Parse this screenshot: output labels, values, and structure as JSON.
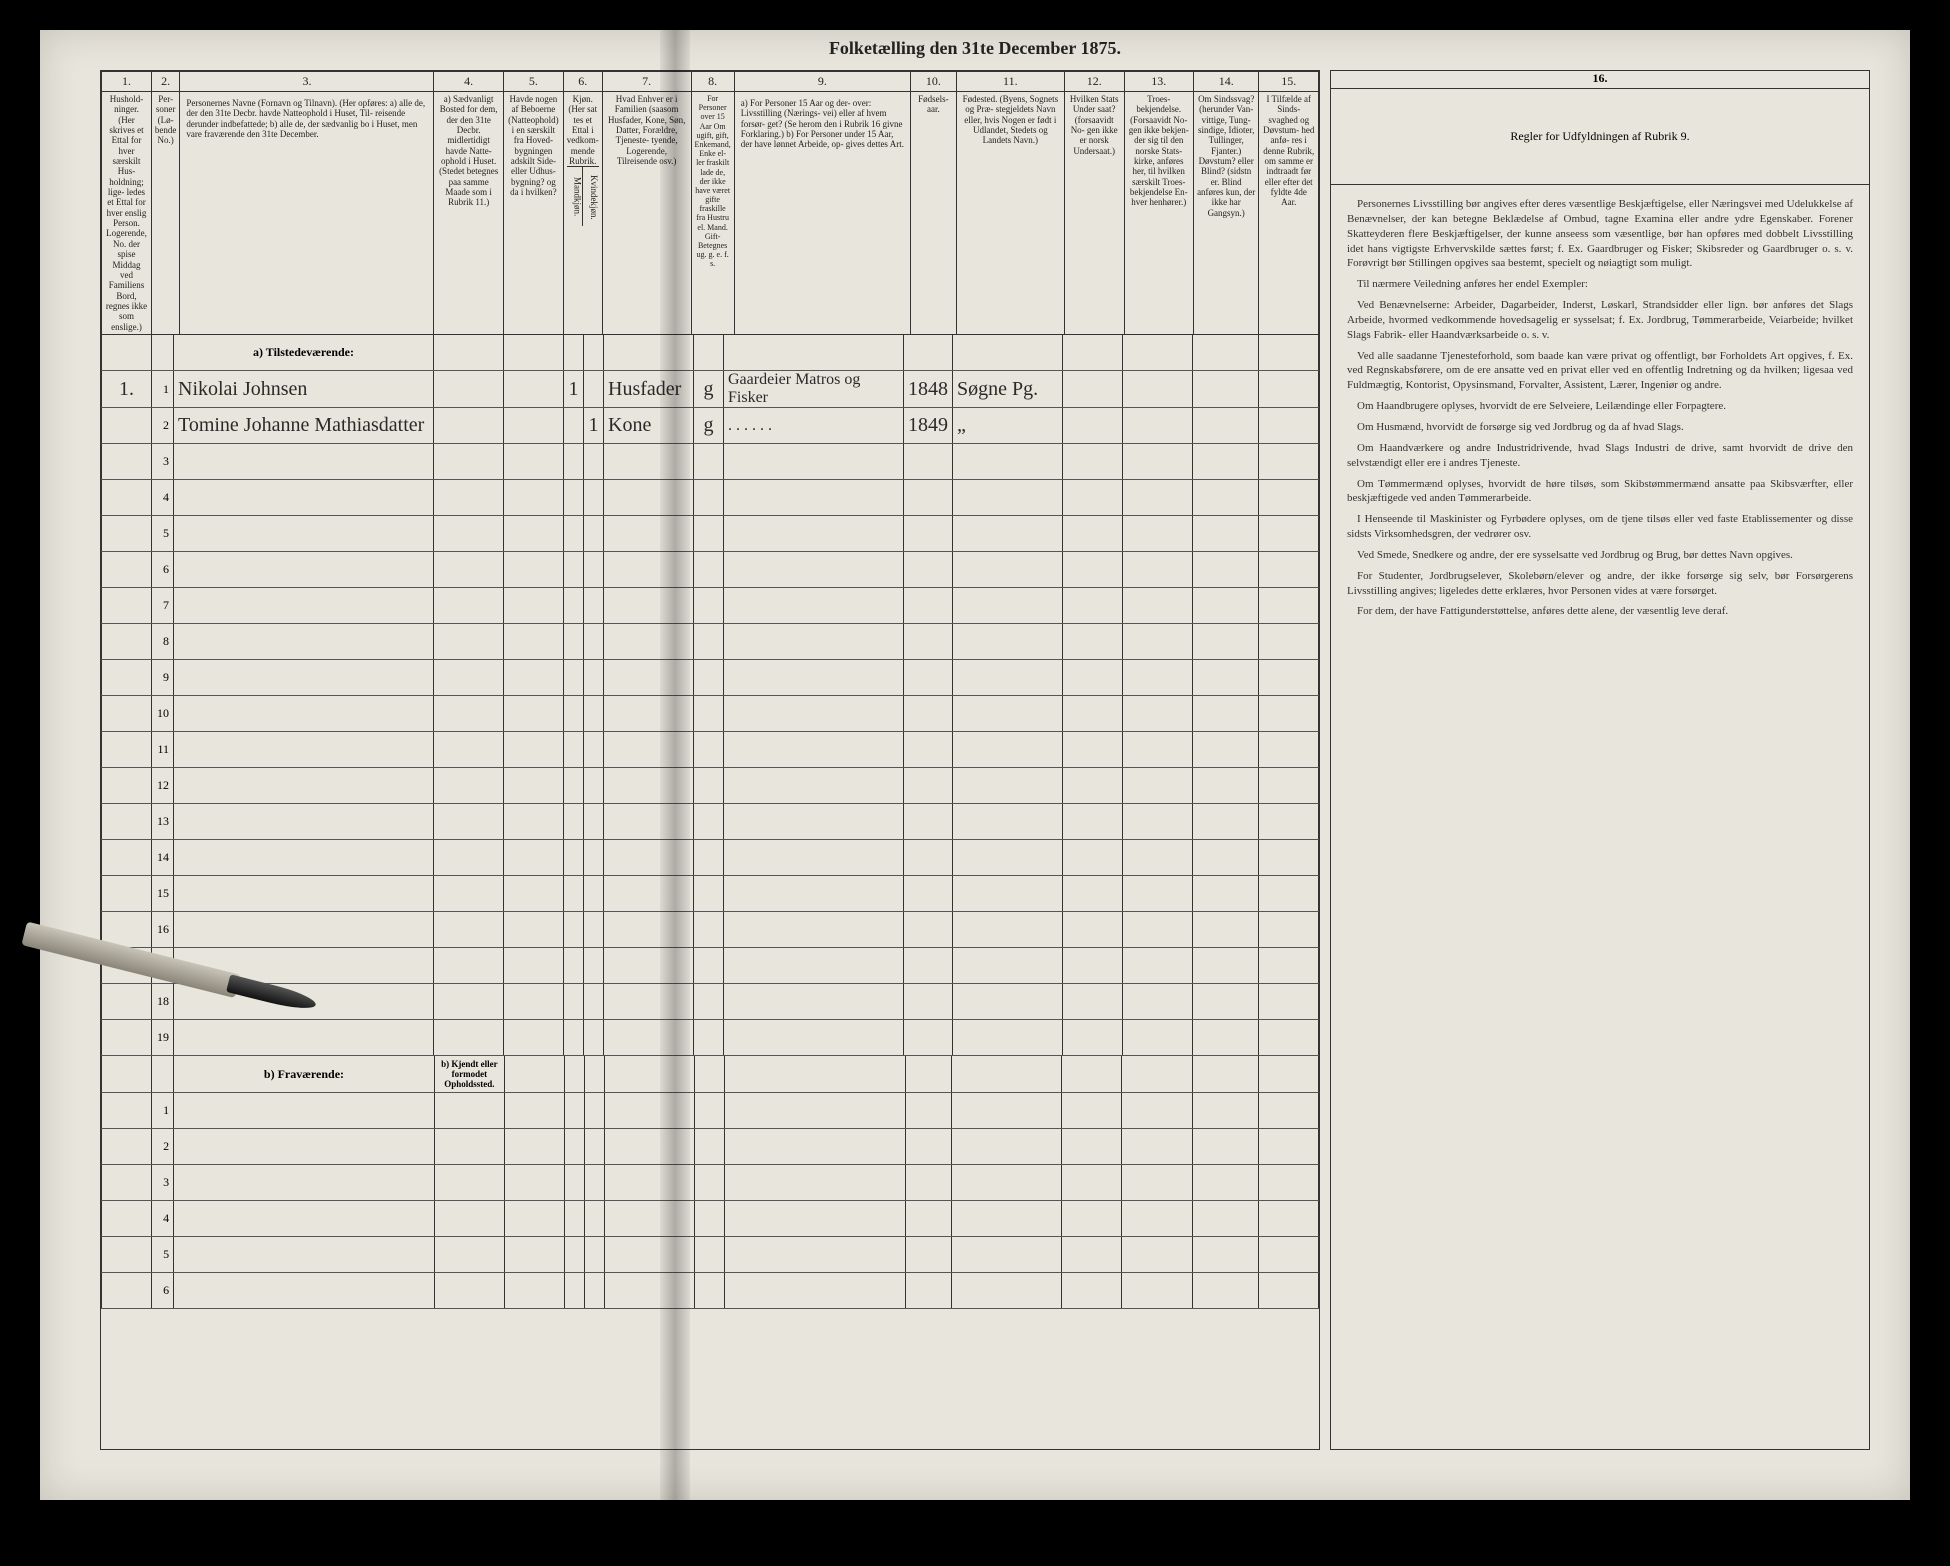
{
  "title_top": "Folketælling den 31te December 1875.",
  "columns": {
    "1": {
      "num": "1.",
      "desc": "Hushold-\nninger.\n(Her skrives et\nEttal for hver\nsærskilt Hus-\nholdning; lige-\nledes et Ettal for\nhver enslig\nPerson.\nLogerende, No.\nder spise Middag\nved Familiens\nBord, regnes ikke\nsom enslige.)"
    },
    "2": {
      "num": "2.",
      "desc": "Per-\nsoner\n(Lø-\nbende\nNo.)"
    },
    "3": {
      "num": "3.",
      "desc": "Personernes Navne (Fornavn og Tilnavn).\n(Her opføres:\na) alle de, der den 31te Decbr. havde Natteophold i Huset, Til-\nreisende derunder indbefattede;\nb) alle de, der sædvanlig bo i Huset, men vare fraværende\nden 31te December."
    },
    "4": {
      "num": "4.",
      "desc": "a) Sædvanligt\nBosted for\ndem, der den\n31te Decbr.\nmidlertidigt\nhavde Natte-\nophold i Huset.\n(Stedet betegnes\npaa samme Maade\nsom i Rubrik 11.)"
    },
    "5": {
      "num": "5.",
      "desc": "Havde nogen\naf Beboerne\n(Natteophold)\ni en særskilt\nfra Hoved-\nbygningen\nadskilt Side-\neller Udhus-\nbygning?\nog da i\nhvilken?"
    },
    "6": {
      "num": "6.",
      "desc": "Kjøn.\n(Her sat\ntes et\nEttal i\nvedkom-\nmende\nRubrik.",
      "sub1": "Mandkjøn.",
      "sub2": "Kvindekjøn."
    },
    "7": {
      "num": "7.",
      "desc": "Hvad Enhver er\ni Familien\n(saasom Husfader,\nKone, Søn, Datter,\nForældre, Tjeneste-\ntyende, Logerende,\nTilreisende osv.)"
    },
    "8": {
      "num": "8.",
      "desc": "For Personer\nover 15 Aar\nOm ugift, gift,\nEnkemand,\nEnke el-\nler fraskilt\nlade de, der\nikke have\nværet gifte\nfraskille fra\nHustru el.\nMand. Gift-\nBetegnes\nug. g. e.\nf. s.",
      "sub1": "",
      "sub2": ""
    },
    "9": {
      "num": "9.",
      "desc": "a) For Personer 15 Aar og der-\nover: Livsstilling (Nærings-\nvei) eller af hvem forsør-\nget? (Se herom den i Rubrik 16\ngivne Forklaring.)\nb) For Personer under 15 Aar,\nder have lønnet Arbeide, op-\ngives dettes Art."
    },
    "10": {
      "num": "10.",
      "desc": "Fødsels-\naar."
    },
    "11": {
      "num": "11.",
      "desc": "Fødested.\n(Byens, Sognets og Præ-\nstegjeldets Navn eller, hvis\nNogen er født i Udlandet,\nStedets og Landets\nNavn.)"
    },
    "12": {
      "num": "12.",
      "desc": "Hvilken\nStats Under\nsaat?\n(forsaavidt No-\ngen ikke er\nnorsk\nUndersaat.)"
    },
    "13": {
      "num": "13.",
      "desc": "Troes-\nbekjendelse.\n(Forsaavidt No-\ngen ikke bekjen-\nder sig til den\nnorske Stats-\nkirke, anføres\nher, til hvilken\nsærskilt Troes-\nbekjendelse En-\nhver henhører.)"
    },
    "14": {
      "num": "14.",
      "desc": "Om\nSindssvag?\n(herunder Van-\nvittige, Tung-\nsindige, Idioter,\nTullinger,\nFjanter.)\nDøvstum?\neller Blind?\n(sidstn er. Blind\nanføres kun, der\nikke har\nGangsyn.)"
    },
    "15": {
      "num": "15.",
      "desc": "I Tilfælde\naf Sinds-\nsvaghed og\nDøvstum-\nhed anfø-\nres i denne\nRubrik,\nom\nsamme er\nindtraadt\nfør eller\nefter det\nfyldte\n4de Aar."
    },
    "16": {
      "num": "16.",
      "desc": "Regler for Udfyldningen\naf\nRubrik 9."
    }
  },
  "section_a": "a) Tilstedeværende:",
  "section_b": "b) Fraværende:",
  "section_b_col4": "b) Kjendt eller\nformodet\nOpholdssted.",
  "rows_a": [
    {
      "n": "1",
      "hh": "1.",
      "col2": "1",
      "name": "Nikolai Johnsen",
      "c4": "",
      "c5": "",
      "c6a": "1",
      "c6b": "",
      "c7": "Husfader",
      "c8": "g",
      "c9": "Gaardeier\nMatros og Fisker",
      "c10": "1848",
      "c11": "Søgne Pg.",
      "c12": "",
      "c13": "",
      "c14": "",
      "c15": ""
    },
    {
      "n": "2",
      "hh": "",
      "col2": "2",
      "name": "Tomine Johanne Mathiasdatter",
      "c4": "",
      "c5": "",
      "c6a": "",
      "c6b": "1",
      "c7": "Kone",
      "c8": "g",
      "c9": ". . . . . .",
      "c10": "1849",
      "c11": "„",
      "c12": "",
      "c13": "",
      "c14": "",
      "c15": ""
    },
    {
      "n": "3"
    },
    {
      "n": "4"
    },
    {
      "n": "5"
    },
    {
      "n": "6"
    },
    {
      "n": "7"
    },
    {
      "n": "8"
    },
    {
      "n": "9"
    },
    {
      "n": "10"
    },
    {
      "n": "11"
    },
    {
      "n": "12"
    },
    {
      "n": "13"
    },
    {
      "n": "14"
    },
    {
      "n": "15"
    },
    {
      "n": "16"
    },
    {
      "n": "17"
    },
    {
      "n": "18"
    },
    {
      "n": "19"
    }
  ],
  "rows_b": [
    {
      "n": "1"
    },
    {
      "n": "2"
    },
    {
      "n": "3"
    },
    {
      "n": "4"
    },
    {
      "n": "5"
    },
    {
      "n": "6"
    }
  ],
  "rules_title": "Regler for Udfyldningen\naf\nRubrik 9.",
  "rules_paragraphs": [
    "Personernes Livsstilling bør angives efter deres væsentlige Beskjæftigelse, eller Næringsvei med Udelukkelse af Benævnelser, der kan betegne Beklædelse af Ombud, tagne Examina eller andre ydre Egenskaber. Forener Skatteyderen flere Beskjæftigelser, der kunne anseess som væsentlige, bør han opføres med dobbelt Livsstilling idet hans vigtigste Erhvervskilde sættes først; f. Ex. Gaardbruger og Fisker; Skibsreder og Gaardbruger o. s. v. Forøvrigt bør Stillingen opgives saa bestemt, specielt og nøiagtigt som muligt.",
    "Til nærmere Veiledning anføres her endel Exempler:",
    "Ved Benævnelserne: Arbeider, Dagarbeider, Inderst, Løskarl, Strandsidder eller lign. bør anføres det Slags Arbeide, hvormed vedkommende hovedsagelig er sysselsat; f. Ex. Jordbrug, Tømmerarbeide, Veiarbeide; hvilket Slags Fabrik- eller Haandværksarbeide o. s. v.",
    "Ved alle saadanne Tjenesteforhold, som baade kan være privat og offentligt, bør Forholdets Art opgives, f. Ex. ved Regnskabsførere, om de ere ansatte ved en privat eller ved en offentlig Indretning og da hvilken; ligesaa ved Fuldmægtig, Kontorist, Opysinsmand, Forvalter, Assistent, Lærer, Ingeniør og andre.",
    "Om Haandbrugere oplyses, hvorvidt de ere Selveiere, Leilændinge eller Forpagtere.",
    "Om Husmænd, hvorvidt de forsørge sig ved Jordbrug og da af hvad Slags.",
    "Om Haandværkere og andre Industridrivende, hvad Slags Industri de drive, samt hvorvidt de drive den selvstændigt eller ere i andres Tjeneste.",
    "Om Tømmermænd oplyses, hvorvidt de høre tilsøs, som Skibstømmermænd ansatte paa Skibsværfter, eller beskjæftigede ved anden Tømmerarbeide.",
    "I Henseende til Maskinister og Fyrbødere oplyses, om de tjene tilsøs eller ved faste Etablissementer og disse sidsts Virksomhedsgren, der vedrører osv.",
    "Ved Smede, Snedkere og andre, der ere sysselsatte ved Jordbrug og Brug, bør dettes Navn opgives.",
    "For Studenter, Jordbrugselever, Skolebørn/elever og andre, der ikke forsørge sig selv, bør Forsørgerens Livsstilling angives; ligeledes dette erklæres, hvor Personen vides at være forsørget.",
    "For dem, der have Fattigunderstøttelse, anføres dette alene, der væsentlig leve deraf."
  ],
  "col_widths": {
    "c1": 50,
    "c2": 22,
    "c3": 260,
    "c4": 70,
    "c5": 60,
    "c6a": 20,
    "c6b": 20,
    "c7": 90,
    "c8": 30,
    "c9": 180,
    "c10": 46,
    "c11": 110,
    "c12": 60,
    "c13": 70,
    "c14": 66,
    "c15": 60
  }
}
